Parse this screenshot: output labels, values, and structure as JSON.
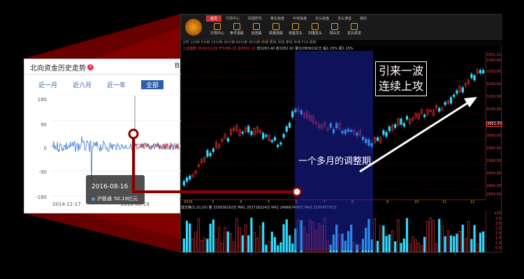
{
  "terminal": {
    "menu_tabs": [
      "首页",
      "行情中心",
      "情报研究",
      "量化操盘",
      "中线操盘",
      "龙头操盘",
      "龙头课堂",
      "我的"
    ],
    "tools": [
      "行情中心",
      "条件选股",
      "自选股",
      "情报选股",
      "资金龙头",
      "扫描龙头",
      "领头羊",
      "龙头抓龙"
    ],
    "period_bar": "分时 1分钟 5分钟 15分钟 30分钟 60分钟 90分钟",
    "period_active": "日线",
    "period_rest": "周线 月线 季线 年线 F10 除权",
    "info_left": "上证指数 2016/11/29 开3269.23 高3301.21",
    "info_right": "低3263.40 收3282.92 量320836192万 幅1.15% 振1.15%",
    "price_labels": [
      "3301.21",
      "3300.00",
      "3250.00",
      "3200.00",
      "3150.00",
      "3100.00",
      "3051.43",
      "3000.00",
      "2950.00",
      "2900.00",
      "2850.00",
      "2800.00"
    ],
    "current_price": "3051.43",
    "bottom_price": "2603.59",
    "date_labels": [
      "2016",
      "3",
      "4",
      "5",
      "6",
      "7",
      "8",
      "9",
      "10",
      "11",
      "12"
    ],
    "volume_bar": "成交量(5,10,20) 量 320836192万 MA1 263718224万 MA2 249667488万 MA3 239545792万",
    "vol_axis": [
      "x10",
      "3.5",
      "3.0",
      "2.5",
      "2.0",
      "1.5",
      "1.0",
      "0.5"
    ],
    "axis_tag": "日线",
    "callout_adjust": "一个多月的调整期",
    "callout_surge_line1": "引来一波",
    "callout_surge_line2": "连续上攻"
  },
  "card": {
    "title": "北向资金历史走势",
    "cut_text": "B",
    "periods": [
      "近一月",
      "近六月",
      "近一年",
      "全部"
    ],
    "selected_period": "全部",
    "y_labels": [
      "180",
      "90",
      "0",
      "-90",
      "-180"
    ],
    "x_labels": [
      "2014-11-17",
      "2016-08-19"
    ],
    "tooltip_date": "2016-08-16",
    "tooltip_series": "沪股通",
    "tooltip_value": "50.19亿元"
  },
  "colors": {
    "up": "#ff3333",
    "down": "#33d9ff",
    "accent": "#e8a020",
    "brand_blue": "#2a5ea8",
    "shade": "#1e28c8"
  }
}
